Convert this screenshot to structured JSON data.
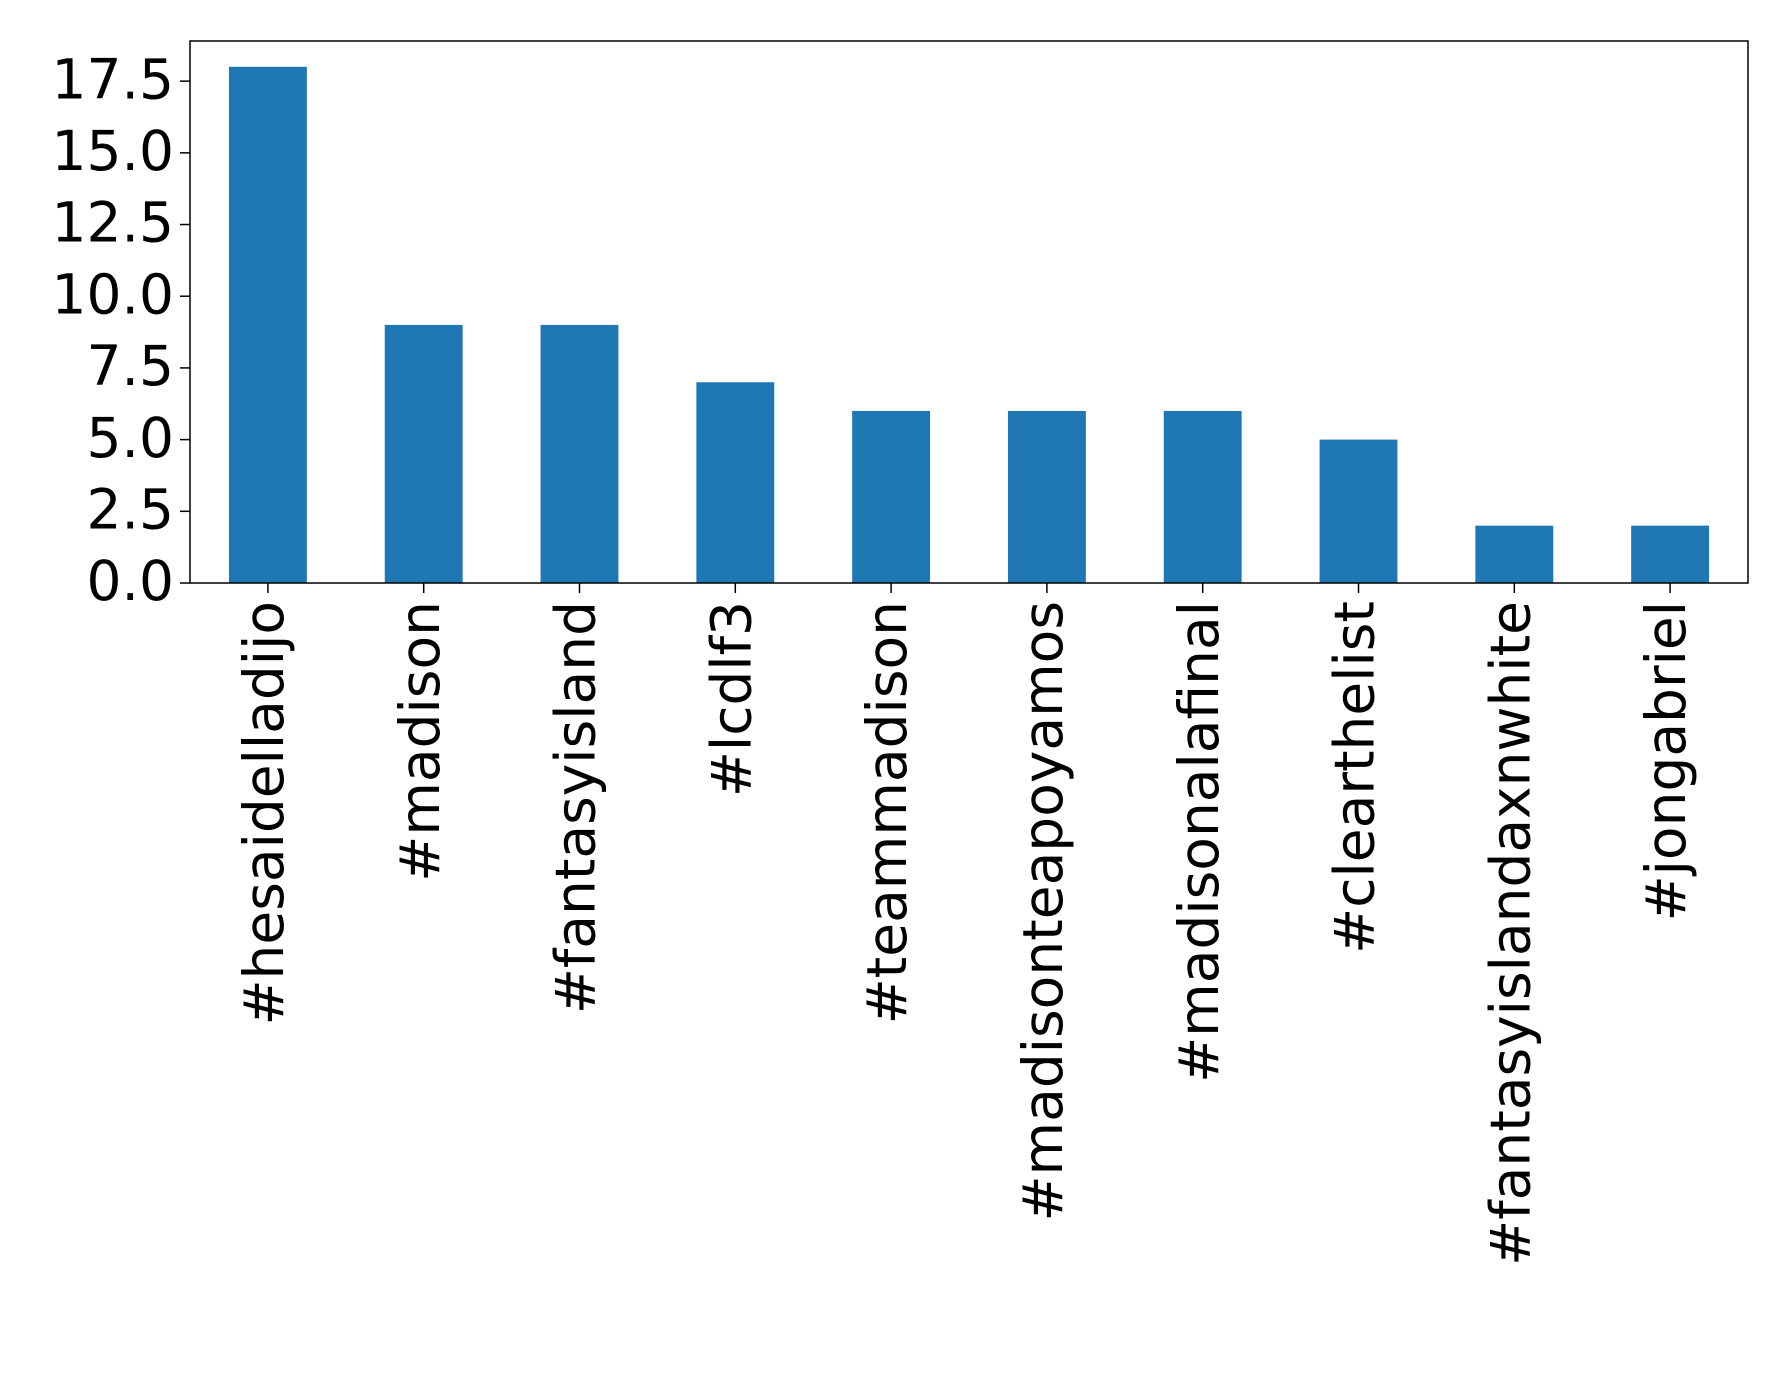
{
  "chart_data": {
    "type": "bar",
    "categories": [
      "#hesaidelladijo",
      "#madison",
      "#fantasyisland",
      "#lcdlf3",
      "#teammadison",
      "#madisonteapoyamos",
      "#madisonalafinal",
      "#clearthelist",
      "#fantasyislandaxnwhite",
      "#jongabriel"
    ],
    "values": [
      18,
      9,
      9,
      7,
      6,
      6,
      6,
      5,
      2,
      2
    ],
    "color": "#1f77b4",
    "ylim": [
      0,
      18.9
    ],
    "yticks": [
      {
        "value": 0,
        "label": "0.0"
      },
      2.5,
      {
        "value": 5,
        "label": "5.0"
      },
      7.5,
      {
        "value": 10,
        "label": "10.0"
      },
      12.5,
      {
        "value": 15,
        "label": "15.0"
      },
      17.5
    ],
    "grid": false
  }
}
